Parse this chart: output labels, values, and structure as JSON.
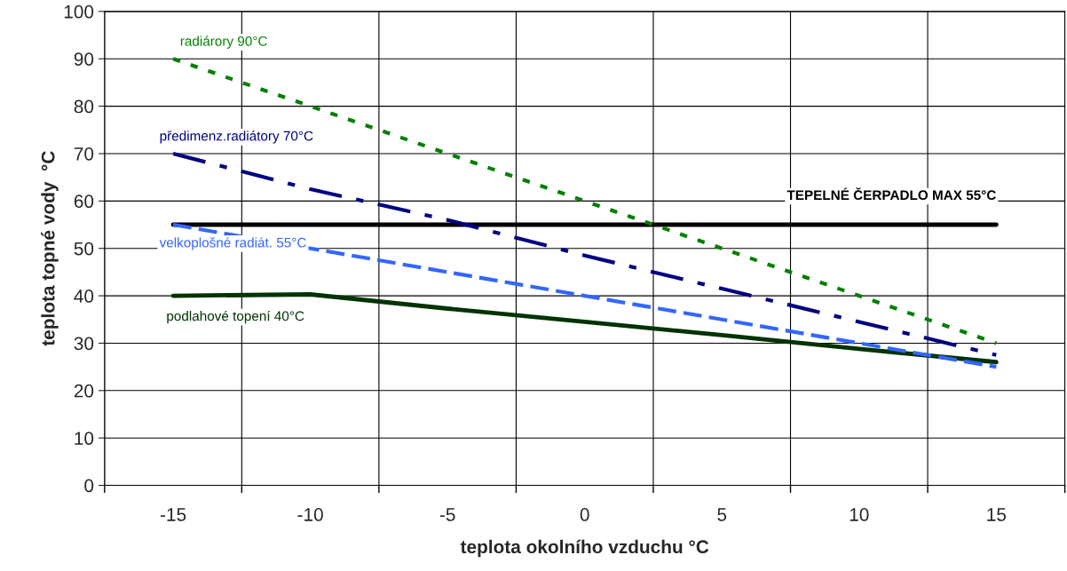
{
  "chart_data": {
    "type": "line",
    "xlabel": "teplota okolního vzduchu °C",
    "ylabel": "teplota topné vody  °C",
    "categories": [
      "-15",
      "-10",
      "-5",
      "0",
      "5",
      "10",
      "15"
    ],
    "ylim": [
      0,
      100
    ],
    "yticks": [
      0,
      10,
      20,
      30,
      40,
      50,
      60,
      70,
      80,
      90,
      100
    ],
    "grid": true,
    "legend": false,
    "series": [
      {
        "name": "radiárory 90°C",
        "color": "#008000",
        "line_style": "dotted",
        "values": [
          90,
          80,
          70,
          60,
          50,
          40,
          30
        ]
      },
      {
        "name": "předimenz.radiátory 70°C",
        "color": "#000080",
        "line_style": "dashdot",
        "values": [
          70,
          62.5,
          56,
          48.5,
          41.5,
          34.5,
          27.5
        ]
      },
      {
        "name": "velkoplošné radiát. 55°C",
        "color": "#3366ff",
        "line_style": "dashed",
        "values": [
          55,
          50,
          45,
          40,
          35,
          30,
          25
        ]
      },
      {
        "name": "podlahové topení 40°C",
        "color": "#003300",
        "line_style": "solid",
        "values": [
          40,
          40.3,
          37.3,
          34.5,
          31.7,
          28.8,
          26
        ]
      },
      {
        "name": "TEPELNÉ ČERPADLO MAX 55°C",
        "color": "#000000",
        "line_style": "solid",
        "values": [
          55,
          55,
          55,
          55,
          55,
          55,
          55
        ]
      }
    ]
  }
}
